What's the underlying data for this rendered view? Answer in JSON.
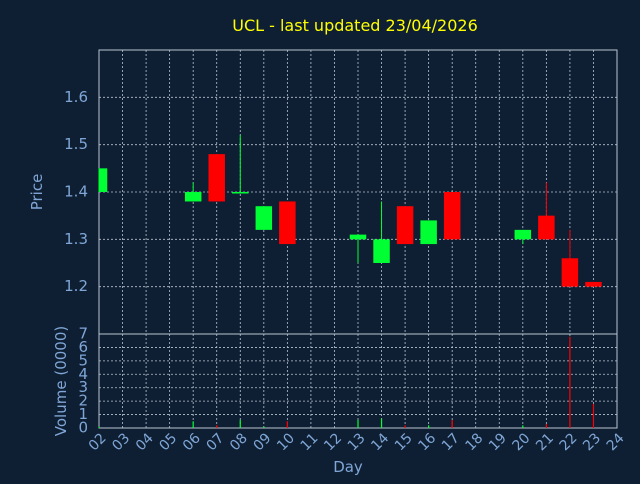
{
  "chart_data": {
    "type": "candlestick",
    "title": "UCL - last updated 23/04/2026",
    "xlabel": "Day",
    "ylabel": "Price",
    "volume_label": "Volume (0000)",
    "categories": [
      "02",
      "03",
      "04",
      "05",
      "06",
      "07",
      "08",
      "09",
      "10",
      "11",
      "12",
      "13",
      "14",
      "15",
      "16",
      "17",
      "18",
      "19",
      "20",
      "21",
      "22",
      "23",
      "24"
    ],
    "price_ticks": [
      1.2,
      1.3,
      1.4,
      1.5,
      1.6
    ],
    "price_ylim": [
      1.1,
      1.7
    ],
    "volume_ticks": [
      0,
      1,
      2,
      3,
      4,
      5,
      6,
      7
    ],
    "volume_ylim": [
      0,
      7
    ],
    "grid": true,
    "colors": {
      "up": "#00ff33",
      "down": "#ff0000",
      "background": "#0f1f33",
      "title": "#ffff00",
      "axis_text": "#7fa6d6",
      "grid": "#b8c4d2"
    },
    "candles": [
      {
        "day": "02",
        "open": 1.4,
        "close": 1.45,
        "high": 1.45,
        "low": 1.4
      },
      {
        "day": "06",
        "open": 1.38,
        "close": 1.4,
        "high": 1.42,
        "low": 1.38
      },
      {
        "day": "07",
        "open": 1.48,
        "close": 1.38,
        "high": 1.48,
        "low": 1.38
      },
      {
        "day": "08",
        "open": 1.4,
        "close": 1.4,
        "high": 1.52,
        "low": 1.4
      },
      {
        "day": "09",
        "open": 1.32,
        "close": 1.37,
        "high": 1.37,
        "low": 1.32
      },
      {
        "day": "10",
        "open": 1.38,
        "close": 1.29,
        "high": 1.38,
        "low": 1.29
      },
      {
        "day": "13",
        "open": 1.3,
        "close": 1.31,
        "high": 1.31,
        "low": 1.25
      },
      {
        "day": "14",
        "open": 1.25,
        "close": 1.3,
        "high": 1.38,
        "low": 1.25
      },
      {
        "day": "15",
        "open": 1.37,
        "close": 1.29,
        "high": 1.37,
        "low": 1.29
      },
      {
        "day": "16",
        "open": 1.29,
        "close": 1.34,
        "high": 1.34,
        "low": 1.29
      },
      {
        "day": "17",
        "open": 1.4,
        "close": 1.3,
        "high": 1.4,
        "low": 1.3
      },
      {
        "day": "20",
        "open": 1.3,
        "close": 1.32,
        "high": 1.32,
        "low": 1.29
      },
      {
        "day": "21",
        "open": 1.35,
        "close": 1.3,
        "high": 1.42,
        "low": 1.3
      },
      {
        "day": "22",
        "open": 1.26,
        "close": 1.2,
        "high": 1.32,
        "low": 1.2
      },
      {
        "day": "23",
        "open": 1.21,
        "close": 1.2,
        "high": 1.21,
        "low": 1.2
      }
    ],
    "volume": [
      {
        "day": "02",
        "value": 0.1,
        "color": "#00ff33"
      },
      {
        "day": "06",
        "value": 0.5,
        "color": "#00ff33"
      },
      {
        "day": "07",
        "value": 0.2,
        "color": "#ff0000"
      },
      {
        "day": "08",
        "value": 0.6,
        "color": "#00ff33"
      },
      {
        "day": "09",
        "value": 0.1,
        "color": "#00ff33"
      },
      {
        "day": "10",
        "value": 0.5,
        "color": "#ff0000"
      },
      {
        "day": "13",
        "value": 0.6,
        "color": "#00ff33"
      },
      {
        "day": "14",
        "value": 0.7,
        "color": "#00ff33"
      },
      {
        "day": "15",
        "value": 0.2,
        "color": "#ff0000"
      },
      {
        "day": "16",
        "value": 0.2,
        "color": "#00ff33"
      },
      {
        "day": "17",
        "value": 0.6,
        "color": "#ff0000"
      },
      {
        "day": "20",
        "value": 0.2,
        "color": "#00ff33"
      },
      {
        "day": "21",
        "value": 0.3,
        "color": "#ff0000"
      },
      {
        "day": "22",
        "value": 6.8,
        "color": "#ff0000"
      },
      {
        "day": "23",
        "value": 1.8,
        "color": "#ff0000"
      }
    ]
  }
}
